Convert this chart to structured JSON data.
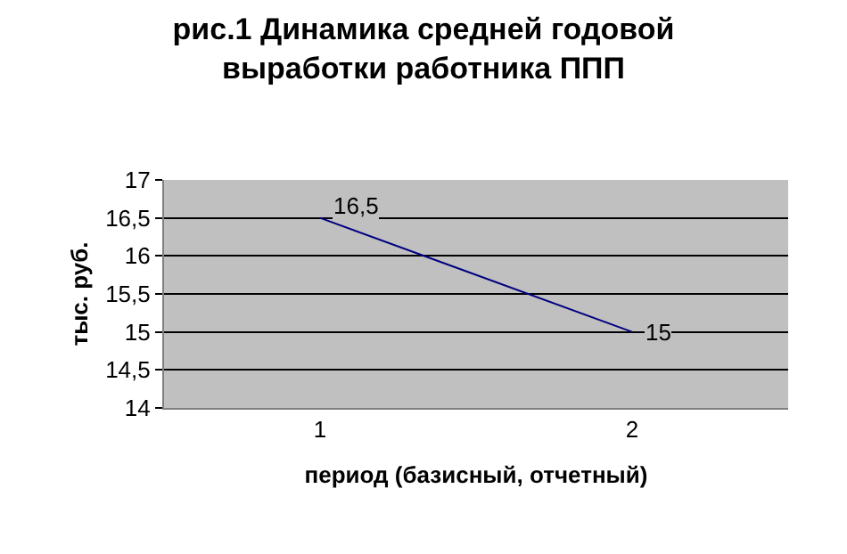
{
  "chart_data": {
    "type": "line",
    "title": "рис.1 Динамика средней годовой\nвыработки работника ППП",
    "xlabel": "период (базисный, отчетный)",
    "ylabel": "тыс. руб.",
    "categories": [
      "1",
      "2"
    ],
    "series": [
      {
        "color": "#000080",
        "values": [
          16.5,
          15
        ],
        "value_labels": [
          "16,5",
          "15"
        ]
      }
    ],
    "ylim": [
      14,
      17
    ],
    "yticks": [
      14,
      {
        "value": 14.5,
        "label": "14,5"
      },
      15,
      {
        "value": 15.5,
        "label": "15,5"
      },
      16,
      {
        "value": 16.5,
        "label": "16,5"
      },
      17
    ],
    "grid": "y",
    "line_style": "solid"
  }
}
